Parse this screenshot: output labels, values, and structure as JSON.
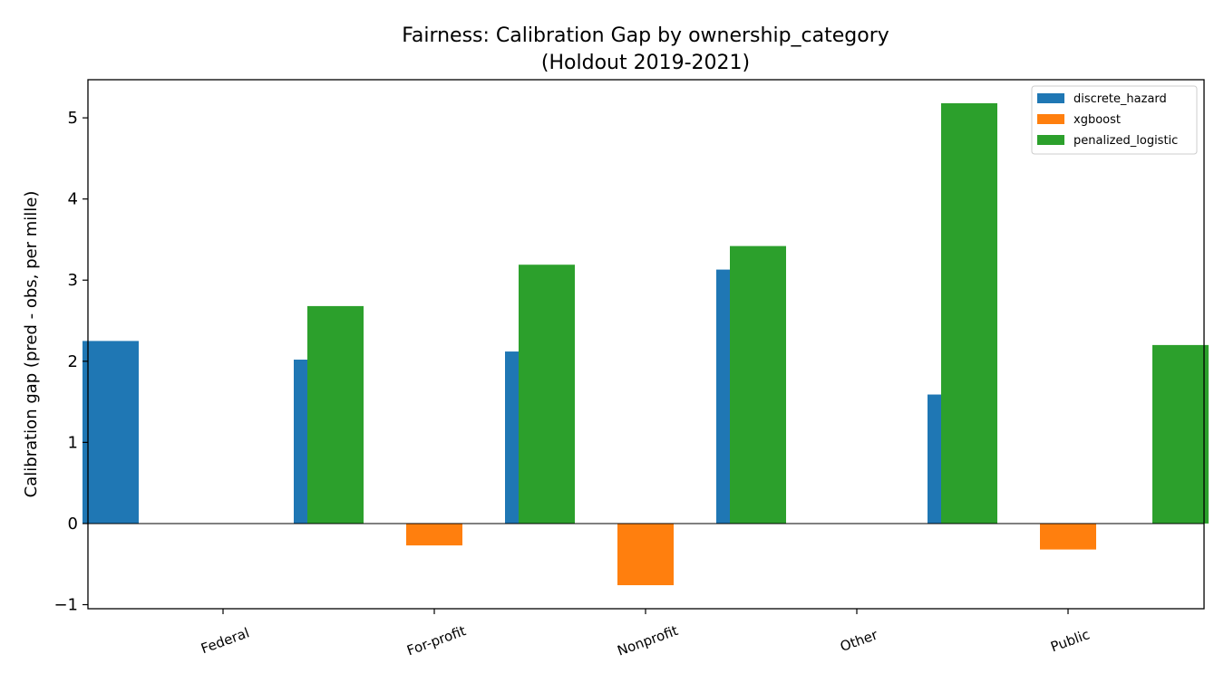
{
  "chart_data": {
    "type": "bar",
    "title_line1": "Fairness: Calibration Gap by ownership_category",
    "title_line2": "(Holdout 2019-2021)",
    "xlabel": "",
    "ylabel": "Calibration gap (pred - obs, per mille)",
    "categories": [
      "Federal",
      "For-profit",
      "Nonprofit",
      "Other",
      "Public"
    ],
    "series": [
      {
        "name": "discrete_hazard",
        "color": "#1f77b4",
        "values": [
          2.25,
          2.02,
          2.12,
          3.13,
          1.59
        ]
      },
      {
        "name": "xgboost",
        "color": "#ff7f0e",
        "values": [
          0.0,
          -0.27,
          -0.76,
          0.0,
          -0.32
        ]
      },
      {
        "name": "penalized_logistic",
        "color": "#2ca02c",
        "values": [
          2.68,
          3.19,
          3.42,
          5.18,
          2.2
        ]
      }
    ],
    "ylim": [
      -1.05,
      5.47
    ],
    "yticks": [
      -1,
      0,
      1,
      2,
      3,
      4,
      5
    ],
    "ytick_labels": [
      "−1",
      "0",
      "1",
      "2",
      "3",
      "4",
      "5"
    ],
    "zero_line": true,
    "grid": false,
    "legend_position": "top-right"
  }
}
